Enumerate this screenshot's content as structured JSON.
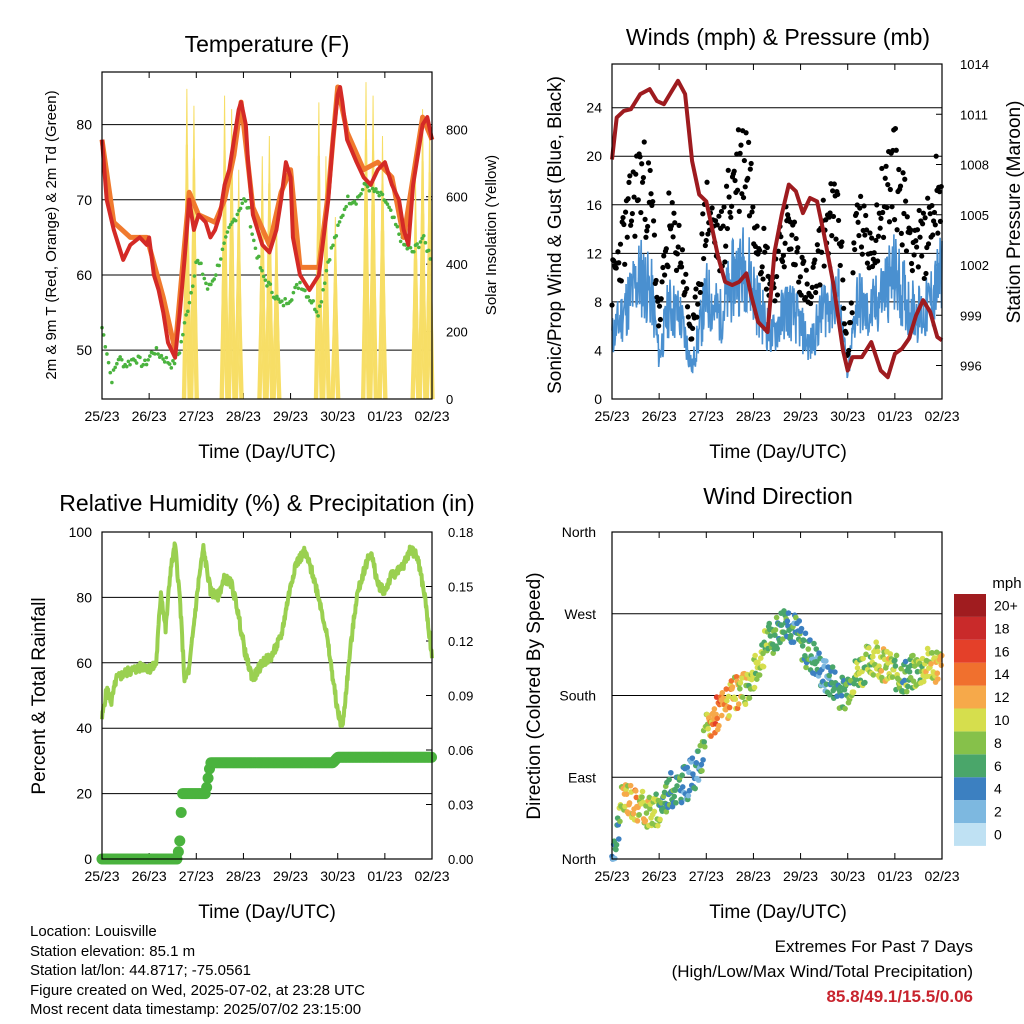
{
  "panels": {
    "temperature": {
      "title": "Temperature (F)",
      "ylabel_left": "2m & 9m T (Red, Orange) & 2m Td (Green)",
      "ylabel_right": "Solar Insolation (Yellow)",
      "xlabel": "Time (Day/UTC)"
    },
    "winds": {
      "title": "Winds (mph) & Pressure (mb)",
      "ylabel_left": "Sonic/Prop Wind & Gust (Blue, Black)",
      "ylabel_right": "Station Pressure (Maroon)",
      "xlabel": "Time (Day/UTC)"
    },
    "humidity": {
      "title": "Relative Humidity (%) & Precipitation (in)",
      "ylabel_left": "Percent & Total Rainfall",
      "xlabel": "Time (Day/UTC)"
    },
    "direction": {
      "title": "Wind Direction",
      "ylabel_left": "Direction (Colored By Speed)",
      "xlabel": "Time (Day/UTC)",
      "colorbar_title": "mph"
    }
  },
  "info": {
    "location": "Location: Louisville",
    "elevation": "Station elevation: 85.1 m",
    "latlon": "Station lat/lon: 44.8717; -75.0561",
    "created": "Figure created on Wed, 2025-07-02, at 23:28 UTC",
    "recent": "Most recent data timestamp: 2025/07/02 23:15:00"
  },
  "extremes": {
    "title": "Extremes For Past 7 Days",
    "subtitle": "(High/Low/Max Wind/Total Precipitation)",
    "values": "85.8/49.1/15.5/0.06"
  },
  "colors": {
    "temp_2m": "#d42a26",
    "temp_9m": "#f07a2e",
    "dewpoint": "#4ab33e",
    "insolation": "#f7de66",
    "wind": "#4a90d0",
    "gust": "#000000",
    "pressure": "#9e1b1f",
    "rh": "#9ad050",
    "precip": "#4ab33e"
  },
  "chart_data": [
    {
      "type": "line",
      "panel": "temperature",
      "x_ticks": [
        "25/23",
        "26/23",
        "27/23",
        "28/23",
        "29/23",
        "30/23",
        "01/23",
        "02/23"
      ],
      "x_range": [
        0,
        7
      ],
      "ylim_left": [
        43.5,
        87
      ],
      "yticks_left": [
        50,
        60,
        70,
        80
      ],
      "ylim_right": [
        0,
        970
      ],
      "yticks_right": [
        0,
        200,
        400,
        600,
        800
      ],
      "grid": "horizontal",
      "series": [
        {
          "name": "2m T",
          "axis": "left",
          "x": [
            0,
            0.1,
            0.25,
            0.45,
            0.6,
            0.8,
            0.95,
            1.0,
            1.1,
            1.2,
            1.3,
            1.4,
            1.55,
            1.65,
            1.75,
            1.85,
            1.95,
            2.05,
            2.2,
            2.3,
            2.4,
            2.5,
            2.6,
            2.7,
            2.8,
            2.9,
            2.95,
            3.05,
            3.1,
            3.2,
            3.4,
            3.55,
            3.7,
            3.8,
            3.9,
            4.0,
            4.05,
            4.2,
            4.4,
            4.6,
            4.8,
            4.9,
            5.0,
            5.05,
            5.1,
            5.2,
            5.4,
            5.55,
            5.7,
            5.85,
            6.0,
            6.15,
            6.3,
            6.4,
            6.5,
            6.6,
            6.7,
            6.8,
            6.9,
            7.0
          ],
          "y": [
            78,
            70,
            66,
            62,
            64,
            65,
            64,
            65,
            60,
            58,
            55,
            51,
            49,
            55,
            62,
            70,
            66,
            68,
            67,
            65,
            66,
            68,
            72,
            74,
            78,
            82,
            83,
            80,
            75,
            68,
            64,
            63,
            66,
            70,
            75,
            73,
            65,
            60,
            58,
            60,
            70,
            78,
            84,
            85,
            83,
            78,
            75,
            73,
            72,
            74,
            75,
            72,
            70,
            66,
            64,
            72,
            76,
            80,
            81,
            78
          ]
        },
        {
          "name": "9m T",
          "axis": "left",
          "x": [
            0,
            0.25,
            0.6,
            0.95,
            1.3,
            1.55,
            1.85,
            2.05,
            2.4,
            2.6,
            2.8,
            2.95,
            3.2,
            3.55,
            3.8,
            4.0,
            4.2,
            4.6,
            4.8,
            5.0,
            5.2,
            5.55,
            5.85,
            6.15,
            6.4,
            6.6,
            6.8,
            7.0
          ],
          "y": [
            78,
            67,
            65,
            65,
            57,
            50,
            71,
            68,
            67,
            70,
            76,
            83,
            69,
            64,
            71,
            74,
            61,
            61,
            71,
            85,
            79,
            74,
            75,
            73,
            65,
            73,
            81,
            78
          ]
        },
        {
          "name": "2m Td",
          "axis": "left",
          "x": [
            0,
            0.1,
            0.2,
            0.35,
            0.5,
            0.7,
            0.9,
            1.1,
            1.3,
            1.5,
            1.65,
            1.8,
            1.9,
            2.0,
            2.1,
            2.25,
            2.4,
            2.55,
            2.7,
            2.85,
            3.0,
            3.1,
            3.2,
            3.4,
            3.6,
            3.8,
            4.0,
            4.2,
            4.4,
            4.6,
            4.8,
            5.0,
            5.2,
            5.4,
            5.6,
            5.8,
            6.0,
            6.2,
            6.4,
            6.6,
            6.8,
            7.0
          ],
          "y": [
            53,
            50,
            46,
            49,
            48,
            49,
            48,
            50,
            49,
            48,
            50,
            55,
            58,
            62,
            61,
            58,
            60,
            63,
            66,
            68,
            70,
            69,
            65,
            60,
            58,
            56,
            57,
            59,
            57,
            55,
            62,
            66,
            70,
            70,
            72,
            71,
            70,
            67,
            64,
            63,
            65,
            62
          ]
        },
        {
          "name": "Solar Insolation",
          "axis": "right",
          "days_peak": [
            1.8,
            1.95,
            2.6,
            2.75,
            2.9,
            3.4,
            3.55,
            3.7,
            4.6,
            4.75,
            4.95,
            5.6,
            5.75,
            5.95,
            6.65,
            6.8,
            6.95
          ],
          "peaks": [
            920,
            870,
            900,
            860,
            680,
            720,
            780,
            560,
            880,
            720,
            540,
            940,
            900,
            780,
            650,
            860,
            820
          ]
        }
      ]
    },
    {
      "type": "line",
      "panel": "winds",
      "x_ticks": [
        "25/23",
        "26/23",
        "27/23",
        "28/23",
        "29/23",
        "30/23",
        "01/23",
        "02/23"
      ],
      "x_range": [
        0,
        7
      ],
      "ylim_left": [
        0,
        27.6
      ],
      "yticks_left": [
        0,
        4,
        8,
        12,
        16,
        20,
        24
      ],
      "ylim_right": [
        994,
        1014
      ],
      "yticks_right": [
        996,
        999,
        1002,
        1005,
        1008,
        1011,
        1014
      ],
      "grid": "horizontal",
      "series": [
        {
          "name": "Pressure",
          "axis": "right",
          "x": [
            0,
            0.1,
            0.25,
            0.4,
            0.6,
            0.8,
            0.95,
            1.1,
            1.25,
            1.4,
            1.55,
            1.7,
            1.85,
            2.0,
            2.1,
            2.25,
            2.4,
            2.55,
            2.7,
            2.85,
            2.95,
            3.1,
            3.3,
            3.45,
            3.6,
            3.75,
            3.9,
            4.05,
            4.2,
            4.35,
            4.5,
            4.7,
            4.9,
            5.0,
            5.1,
            5.3,
            5.5,
            5.7,
            5.85,
            6.0,
            6.15,
            6.3,
            6.45,
            6.6,
            6.75,
            6.9,
            7.0
          ],
          "y": [
            1008.3,
            1010.8,
            1011.2,
            1011.3,
            1012.2,
            1012.5,
            1011.8,
            1011.6,
            1012.3,
            1013,
            1012.2,
            1008.2,
            1006.2,
            1005.8,
            1004.5,
            1002.5,
            1001.0,
            1000.8,
            1001,
            1001.5,
            1000.2,
            998.6,
            998.0,
            1002.8,
            1005.0,
            1006.8,
            1006.4,
            1005.1,
            1006.0,
            1005.8,
            1003.8,
            1000.8,
            996.9,
            995.7,
            996.5,
            996.5,
            997.4,
            995.7,
            995.3,
            996.7,
            997.0,
            997.6,
            999.0,
            999.9,
            999.2,
            997.7,
            997.5
          ]
        }
      ]
    },
    {
      "type": "line",
      "panel": "humidity",
      "x_ticks": [
        "25/23",
        "26/23",
        "27/23",
        "28/23",
        "29/23",
        "30/23",
        "01/23",
        "02/23"
      ],
      "x_range": [
        0,
        7
      ],
      "ylim_left": [
        0,
        100
      ],
      "yticks_left": [
        0,
        20,
        40,
        60,
        80,
        100
      ],
      "ylim_right": [
        0,
        0.18
      ],
      "yticks_right": [
        "0.00",
        "0.03",
        "0.06",
        "0.09",
        "0.12",
        "0.15",
        "0.18"
      ],
      "grid": "horizontal",
      "series": [
        {
          "name": "RH",
          "axis": "left",
          "x": [
            0,
            0.1,
            0.2,
            0.3,
            0.5,
            0.7,
            0.9,
            1.05,
            1.15,
            1.25,
            1.35,
            1.45,
            1.55,
            1.65,
            1.75,
            1.85,
            1.95,
            2.05,
            2.15,
            2.3,
            2.45,
            2.6,
            2.75,
            2.85,
            2.95,
            3.05,
            3.2,
            3.4,
            3.6,
            3.8,
            3.95,
            4.1,
            4.3,
            4.45,
            4.6,
            4.75,
            4.9,
            5.0,
            5.1,
            5.25,
            5.4,
            5.55,
            5.7,
            5.85,
            6.0,
            6.15,
            6.3,
            6.4,
            6.55,
            6.7,
            6.85,
            7.0
          ],
          "y": [
            43,
            52,
            48,
            55,
            57,
            58,
            59,
            58,
            60,
            82,
            70,
            88,
            96,
            80,
            55,
            58,
            72,
            85,
            95,
            82,
            80,
            86,
            84,
            78,
            70,
            62,
            55,
            60,
            62,
            68,
            80,
            90,
            94,
            88,
            80,
            70,
            55,
            45,
            40,
            62,
            80,
            88,
            94,
            84,
            82,
            87,
            88,
            90,
            95,
            92,
            80,
            62
          ]
        },
        {
          "name": "Precipitation",
          "axis": "right",
          "x": [
            0,
            1.5,
            1.6,
            1.65,
            1.7,
            2.1,
            2.2,
            2.3,
            2.8,
            3.6,
            4.2,
            4.5,
            4.9,
            5.0,
            5.1,
            5.6,
            6.2,
            7.0
          ],
          "y": [
            0,
            0,
            0,
            0.01,
            0.036,
            0.036,
            0.036,
            0.053,
            0.053,
            0.053,
            0.053,
            0.053,
            0.053,
            0.056,
            0.056,
            0.056,
            0.056,
            0.056
          ]
        }
      ]
    },
    {
      "type": "scatter",
      "panel": "direction",
      "x_ticks": [
        "25/23",
        "26/23",
        "27/23",
        "28/23",
        "29/23",
        "30/23",
        "01/23",
        "02/23"
      ],
      "x_range": [
        0,
        7
      ],
      "yticks": [
        "North",
        "East",
        "South",
        "West",
        "North"
      ],
      "ylim": [
        0,
        360
      ],
      "grid": "horizontal",
      "colorbar_labels": [
        "0",
        "2",
        "4",
        "6",
        "8",
        "10",
        "12",
        "14",
        "16",
        "18",
        "20+"
      ],
      "colorbar_colors": [
        "#bfe1f3",
        "#7db8e0",
        "#3c80c1",
        "#4aa66a",
        "#86c14a",
        "#d6de4d",
        "#f6a94a",
        "#f0702e",
        "#e44029",
        "#c92a2a",
        "#a01c1f"
      ],
      "x": [
        0.05,
        0.1,
        0.2,
        0.3,
        0.5,
        0.7,
        0.9,
        1.0,
        1.2,
        1.4,
        1.6,
        1.8,
        1.9,
        2.0,
        2.1,
        2.2,
        2.4,
        2.6,
        2.8,
        3.0,
        3.1,
        3.3,
        3.5,
        3.7,
        3.9,
        4.1,
        4.3,
        4.5,
        4.7,
        4.9,
        5.0,
        5.2,
        5.4,
        5.6,
        5.8,
        6.0,
        6.2,
        6.4,
        6.6,
        6.8,
        7.0
      ],
      "y": [
        5,
        25,
        60,
        70,
        60,
        55,
        50,
        55,
        75,
        80,
        85,
        100,
        110,
        140,
        150,
        160,
        170,
        180,
        185,
        200,
        215,
        240,
        250,
        265,
        250,
        230,
        220,
        200,
        195,
        180,
        190,
        205,
        215,
        225,
        210,
        205,
        200,
        205,
        210,
        215,
        210
      ],
      "speed": [
        4,
        6,
        9,
        10,
        11,
        10,
        9,
        7,
        6,
        5,
        4,
        4,
        5,
        9,
        12,
        14,
        12,
        11,
        10,
        8,
        9,
        7,
        6,
        5,
        5,
        6,
        5,
        4,
        5,
        6,
        7,
        8,
        8,
        9,
        10,
        8,
        7,
        8,
        9,
        10,
        11
      ]
    }
  ]
}
